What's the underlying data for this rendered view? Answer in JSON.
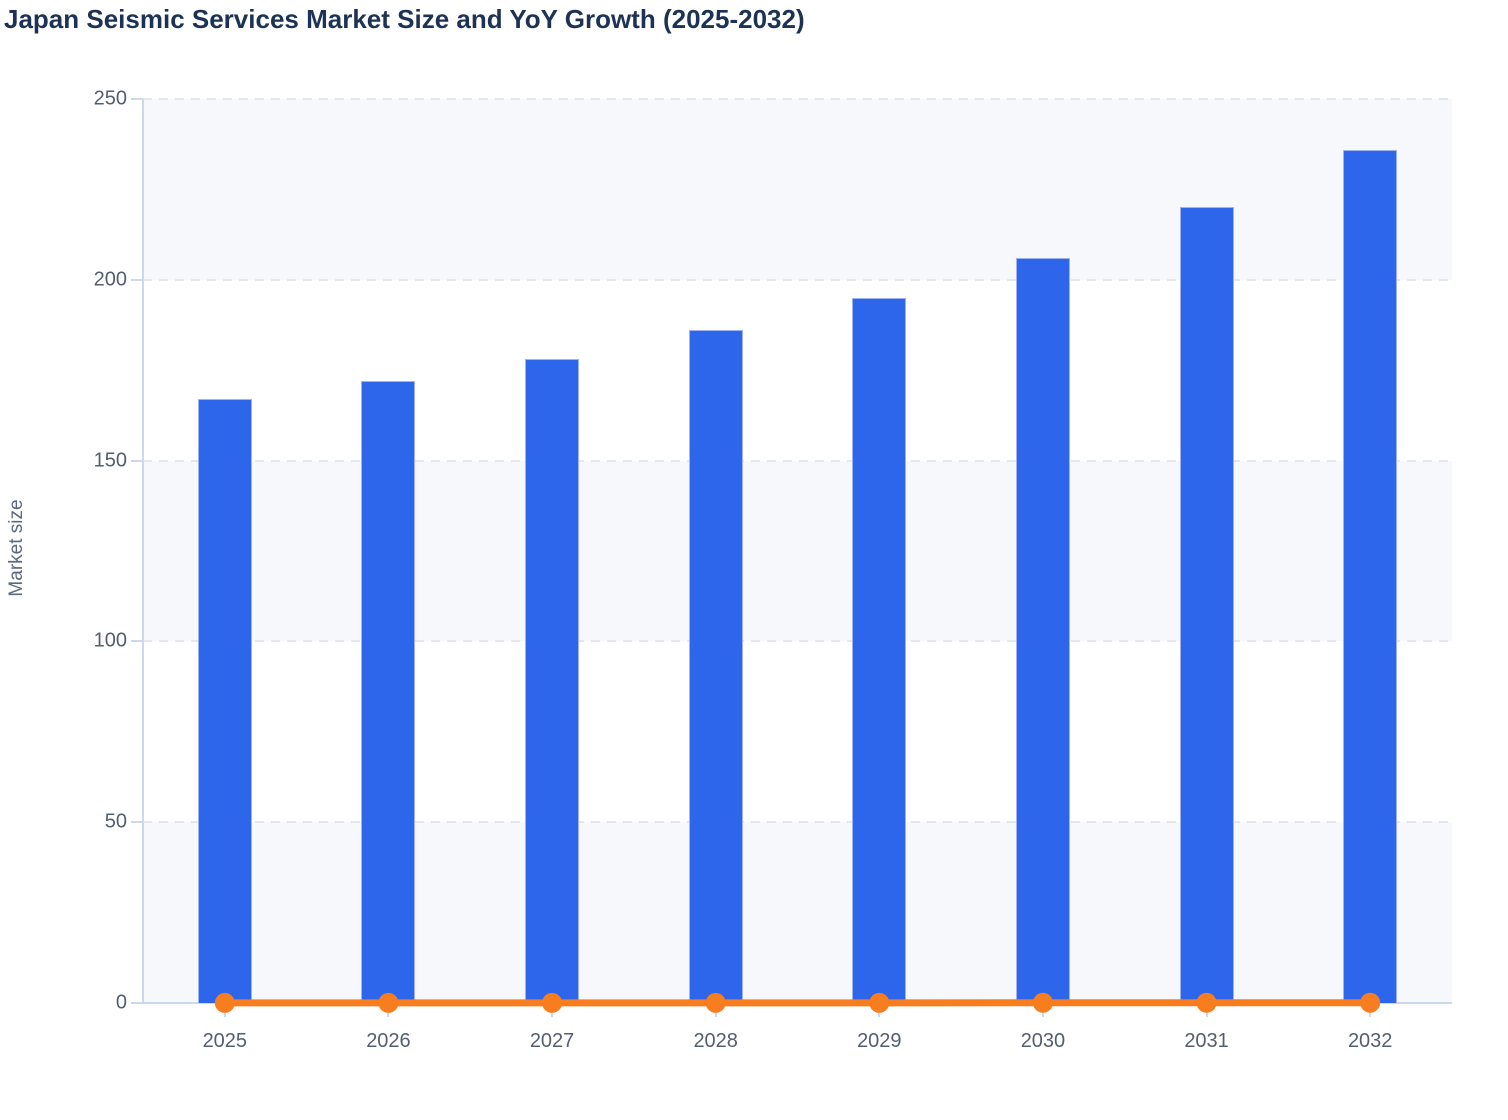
{
  "title": "Japan Seismic Services Market Size and YoY Growth (2025-2032)",
  "colors": {
    "title_text": "#1d3356",
    "axis_text": "#525f72",
    "axis_line": "#ccd7f0",
    "gridline": "#e3e7ee",
    "plot_band": "#f7f8fb",
    "bar_fill": "#2d65eb",
    "bar_stroke": "#9db3f4",
    "line_color": "#f87d1e"
  },
  "chart_data": {
    "type": "bar",
    "title": "Japan Seismic Services Market Size and YoY Growth (2025-2032)",
    "categories": [
      "2025",
      "2026",
      "2027",
      "2028",
      "2029",
      "2030",
      "2031",
      "2032"
    ],
    "series": [
      {
        "name": "Market size",
        "type": "bar",
        "color": "#2d65eb",
        "values": [
          167,
          172,
          178,
          186,
          195,
          206,
          220,
          236
        ]
      },
      {
        "name": "YoY growth",
        "type": "line",
        "color": "#f87d1e",
        "values": [
          0.03,
          0.031,
          0.035,
          0.045,
          0.048,
          0.056,
          0.068,
          0.073
        ],
        "note": "plotted on the same 0-250 axis, so the line reads as flat at ~0 with a dot at every year"
      }
    ],
    "xlabel": "",
    "ylabel": "Market size",
    "ylim": [
      0,
      250
    ],
    "yticks": [
      0,
      50,
      100,
      150,
      200,
      250
    ],
    "grid": "horizontal dashed lines every 50",
    "plot_bands": "alternating white / light-gray horizontal bands (gray: 0-50, 100-150, 200-250)",
    "legend": "none"
  }
}
